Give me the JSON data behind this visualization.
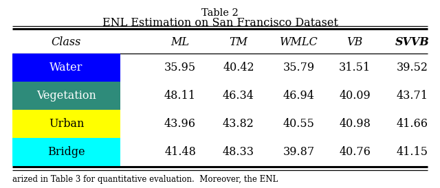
{
  "title_line1": "Table 2",
  "title_line2": "ENL Estimation on San Francisco Dataset",
  "headers": [
    "Class",
    "ML",
    "TM",
    "WMLC",
    "VB",
    "SVVB"
  ],
  "rows": [
    {
      "label": "Water",
      "color": "#0000FF",
      "text_color": "#FFFFFF",
      "values": [
        "35.95",
        "40.42",
        "35.79",
        "31.51",
        "39.52"
      ]
    },
    {
      "label": "Vegetation",
      "color": "#2E8B7A",
      "text_color": "#FFFFFF",
      "values": [
        "48.11",
        "46.34",
        "46.94",
        "40.09",
        "43.71"
      ]
    },
    {
      "label": "Urban",
      "color": "#FFFF00",
      "text_color": "#000000",
      "values": [
        "43.96",
        "43.82",
        "40.55",
        "40.98",
        "41.66"
      ]
    },
    {
      "label": "Bridge",
      "color": "#00FFFF",
      "text_color": "#000000",
      "values": [
        "41.48",
        "48.33",
        "39.87",
        "40.76",
        "41.15"
      ]
    }
  ],
  "bottom_text": "arized in Table 3 for quantitative evaluation.  Moreover, the ENL",
  "bg_color": "#FFFFFF",
  "figsize": [
    6.4,
    2.74
  ],
  "dpi": 100
}
